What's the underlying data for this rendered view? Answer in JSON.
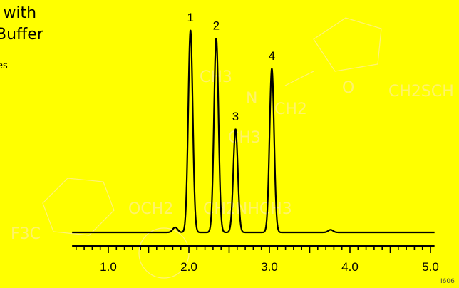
{
  "title_lines": [
    "s with",
    "Buffer"
  ],
  "subtitle": "es",
  "figure_id": "I606",
  "colors": {
    "background": "#ffff00",
    "trace": "#000000",
    "watermark": "#fff36a"
  },
  "watermark_labels": [
    "CH3",
    "N",
    "CH2",
    "CH2SCH",
    "CH3",
    "OCH2",
    "CH2NHCH3",
    "F3C",
    "O"
  ],
  "chart_data": {
    "type": "line",
    "title": "",
    "xlabel": "",
    "ylabel": "",
    "xlim": [
      0.55,
      5.05
    ],
    "ticks": {
      "labels": [
        "1.0",
        "2.0",
        "3.0",
        "4.0",
        "5.0"
      ],
      "values": [
        1.0,
        2.0,
        3.0,
        4.0,
        5.0
      ],
      "minor_step": 0.1
    },
    "baseline": 0.0,
    "peaks": [
      {
        "label": "1",
        "x": 2.02,
        "height": 1.0
      },
      {
        "label": "2",
        "x": 2.34,
        "height": 0.96
      },
      {
        "label": "3",
        "x": 2.58,
        "height": 0.51
      },
      {
        "label": "4",
        "x": 3.03,
        "height": 0.81
      }
    ],
    "minor_features": [
      {
        "x": 1.83,
        "height": 0.025
      },
      {
        "x": 3.76,
        "height": 0.013
      }
    ]
  }
}
